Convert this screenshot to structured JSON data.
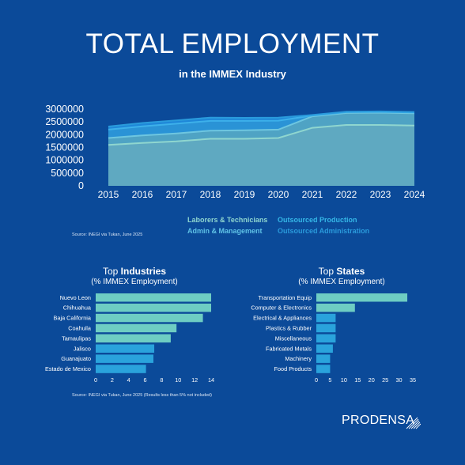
{
  "title": "TOTAL EMPLOYMENT",
  "subtitle": "in the IMMEX Industry",
  "brand": "PRODENSA",
  "colors": {
    "background": "#0b4a99",
    "laborers": "#5fa9c1",
    "admin": "#4fa3c4",
    "outsourced_production": "#2a93d6",
    "outsourced_admin": "#1e87d8",
    "industry_bars": "#6ecdc3",
    "industry_bars_alt": "#2aa3dc"
  },
  "employment": {
    "source": "Source: INEGI via Tukan, June 2025",
    "legend": [
      {
        "label": "Laborers & Technicians",
        "color": "#8fd6cf"
      },
      {
        "label": "Outsourced Production",
        "color": "#35b8e8"
      },
      {
        "label": "Admin & Management",
        "color": "#5fc2e6"
      },
      {
        "label": "Outsourced Administration",
        "color": "#2a9bdc"
      }
    ],
    "y_ticks": [
      "0",
      "500000",
      "1000000",
      "1500000",
      "2000000",
      "2500000",
      "3000000"
    ]
  },
  "industries": {
    "title_plain": "Top ",
    "title_bold": "Industries",
    "subtitle": "(% IMMEX Employment)",
    "x_ticks": [
      "0",
      "2",
      "4",
      "6",
      "8",
      "10",
      "12",
      "14"
    ]
  },
  "states": {
    "title_plain": "Top ",
    "title_bold": "States",
    "subtitle": "(% IMMEX Employment)",
    "x_ticks": [
      "0",
      "5",
      "10",
      "15",
      "20",
      "25",
      "30",
      "35"
    ]
  },
  "bottom_source": "Source: INEGI via Tukan, June 2025 (Results less than 5% not included)",
  "chart_data": [
    {
      "type": "area",
      "x": [
        "2015",
        "2016",
        "2017",
        "2018",
        "2019",
        "2020",
        "2021",
        "2022",
        "2023",
        "2024"
      ],
      "ylim": [
        0,
        3000000
      ],
      "series": [
        {
          "name": "Laborers & Technicians",
          "values": [
            1600000,
            1680000,
            1740000,
            1840000,
            1840000,
            1870000,
            2270000,
            2380000,
            2380000,
            2360000
          ]
        },
        {
          "name": "Admin & Management",
          "values": [
            270000,
            290000,
            310000,
            320000,
            330000,
            330000,
            450000,
            470000,
            480000,
            480000
          ]
        },
        {
          "name": "Outsourced Production",
          "values": [
            330000,
            360000,
            380000,
            380000,
            370000,
            350000,
            30000,
            30000,
            30000,
            30000
          ]
        },
        {
          "name": "Outsourced Administration",
          "values": [
            120000,
            130000,
            130000,
            130000,
            120000,
            120000,
            20000,
            20000,
            20000,
            20000
          ]
        }
      ],
      "grid": false
    },
    {
      "type": "bar",
      "orientation": "horizontal",
      "categories": [
        "Nuevo Leon",
        "Chihuahua",
        "Baja California",
        "Coahuila",
        "Tamaulipas",
        "Jalisco",
        "Guanajuato",
        "Estado de Mexico"
      ],
      "values": [
        14,
        14,
        13,
        9.8,
        9.1,
        7.1,
        7.0,
        6.1
      ],
      "xlim": [
        0,
        14
      ]
    },
    {
      "type": "bar",
      "orientation": "horizontal",
      "categories": [
        "Transportation Equip",
        "Computer & Electronics",
        "Electrical & Appliances",
        "Plastics & Rubber",
        "Miscellaneous",
        "Fabricated Metals",
        "Machinery",
        "Food Products"
      ],
      "values": [
        33,
        14,
        7,
        7,
        7,
        6,
        5,
        5
      ],
      "xlim": [
        0,
        35
      ]
    }
  ]
}
